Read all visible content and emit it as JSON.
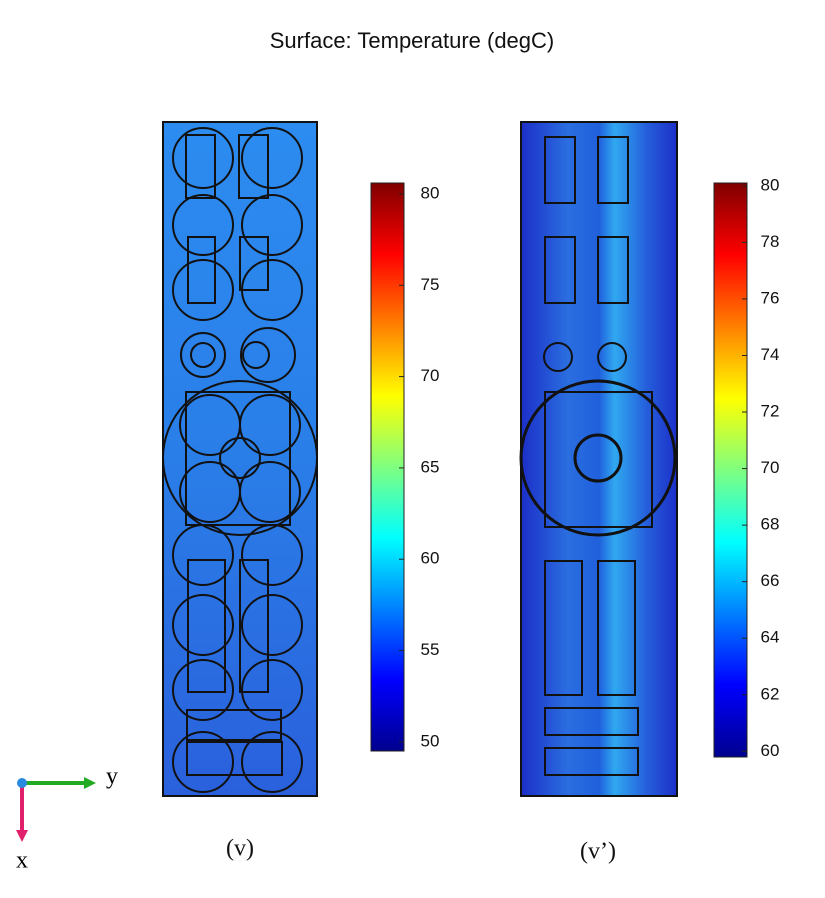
{
  "title": "Surface: Temperature (degC)",
  "panels": [
    {
      "label": "(v)",
      "colorbar": {
        "lim": [
          49.5,
          80.6
        ],
        "ticks": [
          50,
          55,
          60,
          65,
          70,
          75,
          80
        ]
      }
    },
    {
      "label": "(v’)",
      "colorbar": {
        "lim": [
          59.8,
          80.1
        ],
        "ticks": [
          60,
          62,
          64,
          66,
          68,
          70,
          72,
          74,
          76,
          78,
          80
        ]
      }
    }
  ],
  "axes": {
    "x": "x",
    "y": "y"
  }
}
